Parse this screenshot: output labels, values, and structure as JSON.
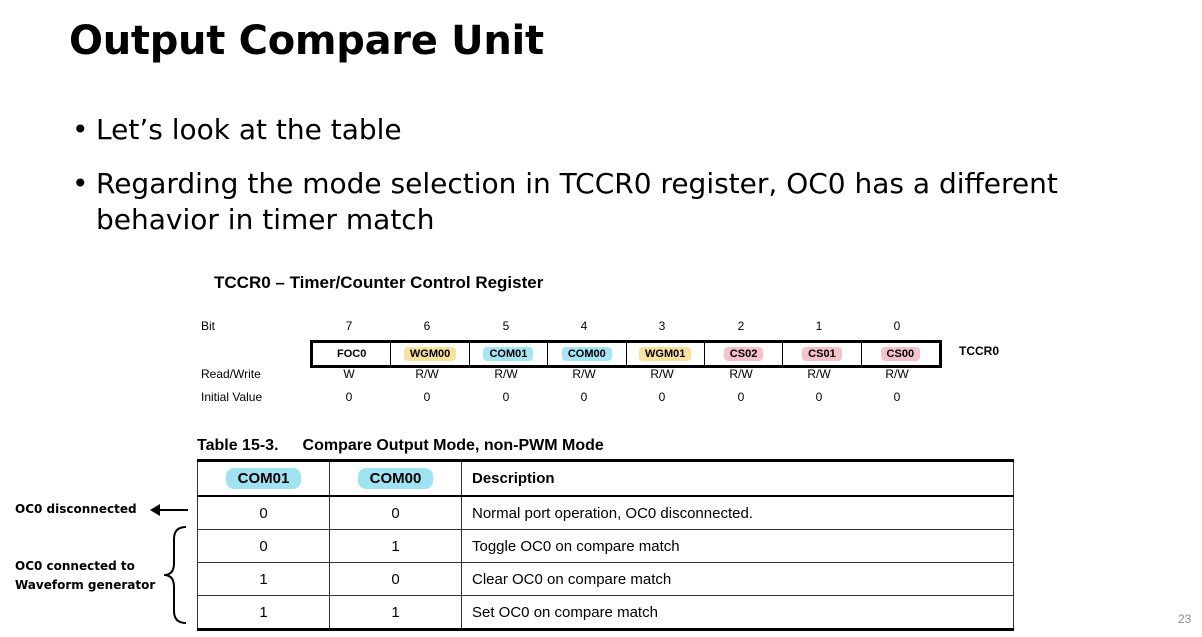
{
  "slide": {
    "title": "Output Compare Unit",
    "bullets": [
      "Let’s look at the table",
      "Regarding the mode selection in TCCR0 register, OC0 has a different behavior in timer match"
    ],
    "page_number": "23"
  },
  "register": {
    "title": "TCCR0 – Timer/Counter Control Register",
    "name": "TCCR0",
    "labels": {
      "bit": "Bit",
      "rw": "Read/Write",
      "init": "Initial Value"
    },
    "bits": [
      {
        "num": "7",
        "name": "FOC0",
        "rw": "W",
        "init": "0",
        "color": ""
      },
      {
        "num": "6",
        "name": "WGM00",
        "rw": "R/W",
        "init": "0",
        "color": "#f9e29a"
      },
      {
        "num": "5",
        "name": "COM01",
        "rw": "R/W",
        "init": "0",
        "color": "#a4e6f4"
      },
      {
        "num": "4",
        "name": "COM00",
        "rw": "R/W",
        "init": "0",
        "color": "#a4e6f4"
      },
      {
        "num": "3",
        "name": "WGM01",
        "rw": "R/W",
        "init": "0",
        "color": "#f9e29a"
      },
      {
        "num": "2",
        "name": "CS02",
        "rw": "R/W",
        "init": "0",
        "color": "#f5c2cc"
      },
      {
        "num": "1",
        "name": "CS01",
        "rw": "R/W",
        "init": "0",
        "color": "#f5c2cc"
      },
      {
        "num": "0",
        "name": "CS00",
        "rw": "R/W",
        "init": "0",
        "color": "#f5c2cc"
      }
    ]
  },
  "table": {
    "number": "Table 15-3.",
    "caption": "Compare Output Mode, non-PWM Mode",
    "headers": [
      "COM01",
      "COM00",
      "Description"
    ],
    "rows": [
      [
        "0",
        "0",
        "Normal port operation, OC0 disconnected."
      ],
      [
        "0",
        "1",
        "Toggle OC0 on compare match"
      ],
      [
        "1",
        "0",
        "Clear OC0 on compare match"
      ],
      [
        "1",
        "1",
        "Set OC0 on compare match"
      ]
    ]
  },
  "annotations": {
    "disconnected": "OC0 disconnected",
    "connected_line1": "OC0 connected to",
    "connected_line2": "Waveform generator"
  }
}
